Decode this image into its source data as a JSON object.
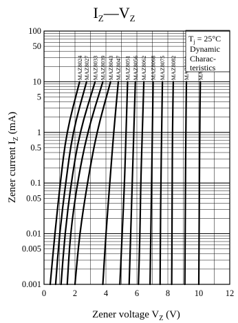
{
  "chart_data": {
    "type": "line",
    "title": "I",
    "title_sub1": "Z",
    "title_dash": "—",
    "title_v": "V",
    "title_sub2": "Z",
    "xlabel": "Zener voltage  V",
    "xlabel_sub": "Z",
    "xlabel_unit": " (V)",
    "ylabel": "Zener current  I",
    "ylabel_sub": "Z",
    "ylabel_unit": "  (mA)",
    "xlim": [
      0,
      12
    ],
    "ylim": [
      0.001,
      100
    ],
    "yscale": "log",
    "grid": true,
    "x_ticks": [
      "0",
      "2",
      "4",
      "6",
      "8",
      "10",
      "12"
    ],
    "x_tick_values": [
      0,
      2,
      4,
      6,
      8,
      10,
      12
    ],
    "y_ticks": [
      "100",
      "50",
      "10",
      "5",
      "1",
      "0.5",
      "0.1",
      "0.05",
      "0.01",
      "0.005",
      "0.001"
    ],
    "y_tick_values": [
      100,
      50,
      10,
      5,
      1,
      0.5,
      0.1,
      0.05,
      0.01,
      0.005,
      0.001
    ],
    "legend_lines": [
      "T",
      "j",
      " = 25°C",
      "Dynamic",
      "Charac-",
      "teristics"
    ],
    "series": [
      {
        "name": "MAZ8024",
        "points": [
          [
            0.4,
            0.001
          ],
          [
            0.7,
            0.01
          ],
          [
            1.05,
            0.1
          ],
          [
            1.45,
            1
          ],
          [
            2.3,
            10
          ]
        ]
      },
      {
        "name": "MAZ8027",
        "points": [
          [
            0.75,
            0.001
          ],
          [
            1.0,
            0.01
          ],
          [
            1.4,
            0.1
          ],
          [
            1.85,
            1
          ],
          [
            2.75,
            10
          ]
        ]
      },
      {
        "name": "MAZ8033",
        "points": [
          [
            1.1,
            0.001
          ],
          [
            1.35,
            0.01
          ],
          [
            1.75,
            0.1
          ],
          [
            2.3,
            1
          ],
          [
            3.3,
            10
          ]
        ]
      },
      {
        "name": "MAZ8039",
        "points": [
          [
            1.5,
            0.001
          ],
          [
            1.7,
            0.01
          ],
          [
            2.15,
            0.1
          ],
          [
            2.8,
            1
          ],
          [
            3.8,
            10
          ]
        ]
      },
      {
        "name": "MAZ8043",
        "points": [
          [
            2.0,
            0.001
          ],
          [
            2.3,
            0.01
          ],
          [
            2.8,
            0.1
          ],
          [
            3.4,
            1
          ],
          [
            4.3,
            10
          ]
        ]
      },
      {
        "name": "MAZ8047",
        "points": [
          [
            3.8,
            0.001
          ],
          [
            4.0,
            0.01
          ],
          [
            4.25,
            0.1
          ],
          [
            4.5,
            1
          ],
          [
            4.8,
            10
          ]
        ]
      },
      {
        "name": "MAZ8051",
        "points": [
          [
            4.9,
            0.001
          ],
          [
            5.05,
            0.01
          ],
          [
            5.2,
            0.1
          ],
          [
            5.3,
            1
          ],
          [
            5.4,
            10
          ]
        ]
      },
      {
        "name": "MAZ8056",
        "points": [
          [
            5.5,
            0.001
          ],
          [
            5.6,
            0.01
          ],
          [
            5.7,
            0.1
          ],
          [
            5.8,
            1
          ],
          [
            5.9,
            10
          ]
        ]
      },
      {
        "name": "MAZ8062",
        "points": [
          [
            6.1,
            0.001
          ],
          [
            6.2,
            0.01
          ],
          [
            6.25,
            0.1
          ],
          [
            6.35,
            1
          ],
          [
            6.45,
            10
          ]
        ]
      },
      {
        "name": "MAZ8068",
        "points": [
          [
            6.85,
            0.001
          ],
          [
            6.9,
            0.01
          ],
          [
            6.95,
            0.1
          ],
          [
            7.0,
            1
          ],
          [
            7.05,
            10
          ]
        ]
      },
      {
        "name": "MAZ8075",
        "points": [
          [
            7.5,
            0.001
          ],
          [
            7.52,
            0.01
          ],
          [
            7.55,
            0.1
          ],
          [
            7.6,
            1
          ],
          [
            7.65,
            10
          ]
        ]
      },
      {
        "name": "MAZ8082",
        "points": [
          [
            8.25,
            0.001
          ],
          [
            8.27,
            0.01
          ],
          [
            8.28,
            0.1
          ],
          [
            8.3,
            1
          ],
          [
            8.35,
            10
          ]
        ]
      },
      {
        "name": "MAZ8091",
        "points": [
          [
            9.1,
            0.001
          ],
          [
            9.12,
            0.01
          ],
          [
            9.14,
            0.1
          ],
          [
            9.16,
            1
          ],
          [
            9.2,
            10
          ]
        ]
      },
      {
        "name": "MAZ8100",
        "points": [
          [
            10.0,
            0.001
          ],
          [
            10.02,
            0.01
          ],
          [
            10.04,
            0.1
          ],
          [
            10.06,
            1
          ],
          [
            10.1,
            10
          ]
        ]
      }
    ]
  }
}
